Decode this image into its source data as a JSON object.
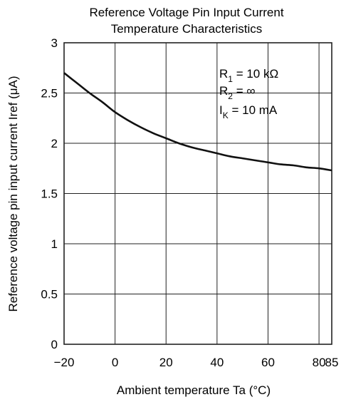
{
  "chart_data": {
    "type": "line",
    "title_lines": [
      "Reference Voltage Pin Input Current",
      "Temperature Characteristics"
    ],
    "xlabel": "Ambient temperature  Ta  (°C)",
    "ylabel": "Reference voltage pin input current  Iref  (μA)",
    "xlim": [
      -20,
      85
    ],
    "ylim": [
      0,
      3
    ],
    "x_ticks": [
      -20,
      0,
      20,
      40,
      60,
      80,
      85
    ],
    "x_tick_labels": [
      "−20",
      "0",
      "20",
      "40",
      "60",
      "80",
      "85"
    ],
    "y_ticks": [
      0,
      0.5,
      1,
      1.5,
      2,
      2.5,
      3
    ],
    "y_tick_labels": [
      "0",
      "0.5",
      "1",
      "1.5",
      "2",
      "2.5",
      "3"
    ],
    "x_grid": [
      0,
      20,
      40,
      60,
      80
    ],
    "y_grid": [
      0.5,
      1,
      1.5,
      2,
      2.5
    ],
    "grid": true,
    "series": [
      {
        "x": [
          -20,
          -15,
          -10,
          -5,
          0,
          5,
          10,
          15,
          20,
          25,
          30,
          35,
          40,
          45,
          50,
          55,
          60,
          65,
          70,
          75,
          80,
          85
        ],
        "values": [
          2.7,
          2.6,
          2.5,
          2.41,
          2.31,
          2.23,
          2.16,
          2.1,
          2.05,
          2.0,
          1.96,
          1.93,
          1.9,
          1.87,
          1.85,
          1.83,
          1.81,
          1.79,
          1.78,
          1.76,
          1.75,
          1.73
        ]
      }
    ],
    "annotation": [
      {
        "base": "R",
        "sub": "1",
        "rest": " = 10 kΩ"
      },
      {
        "base": "R",
        "sub": "2",
        "rest": " = ∞"
      },
      {
        "base": "I",
        "sub": "K",
        "rest": " = 10 mA"
      }
    ],
    "colors": {
      "line": "#111111",
      "grid": "#222222",
      "frame": "#222222"
    }
  }
}
